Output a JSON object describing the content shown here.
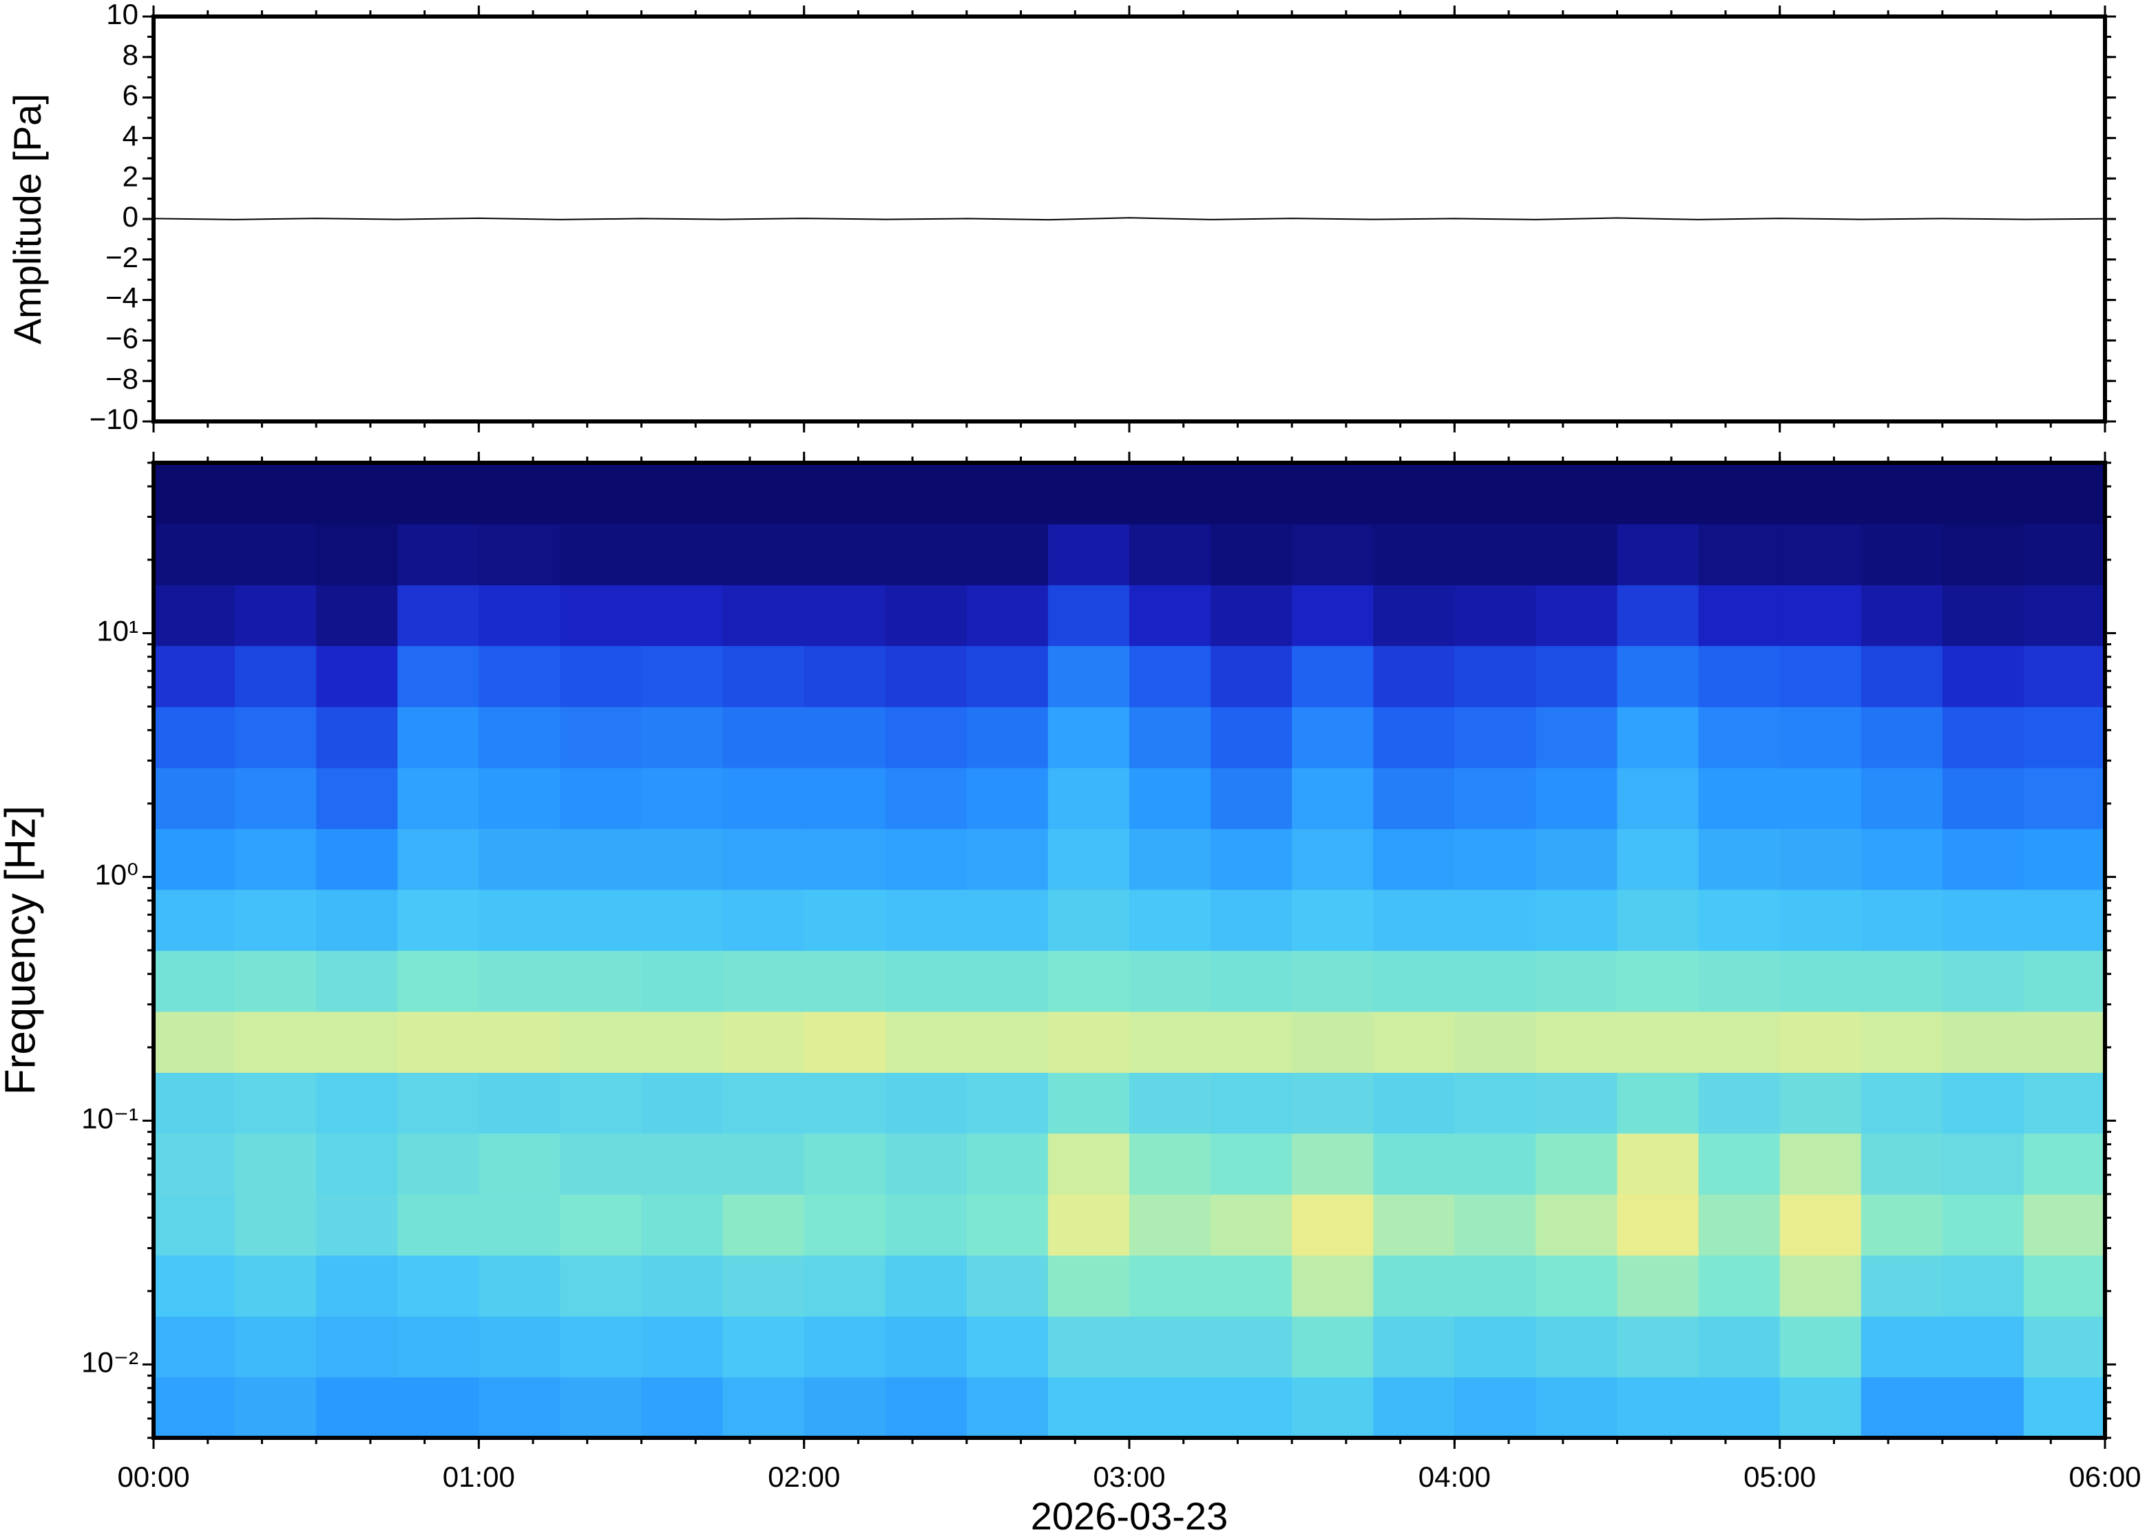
{
  "chart_data": [
    {
      "type": "line",
      "ylabel": "Amplitude [Pa]",
      "color": "#000000",
      "xlim": [
        0,
        360
      ],
      "ylim": [
        -10,
        10
      ],
      "yticks": [
        {
          "value": -10,
          "label": "−10"
        },
        {
          "value": -8,
          "label": "−8"
        },
        {
          "value": -6,
          "label": "−6"
        },
        {
          "value": -4,
          "label": "−4"
        },
        {
          "value": -2,
          "label": "−2"
        },
        0,
        2,
        4,
        6,
        8,
        10
      ],
      "x": [
        0,
        15,
        30,
        45,
        60,
        75,
        90,
        105,
        120,
        135,
        150,
        165,
        180,
        195,
        210,
        225,
        240,
        255,
        270,
        285,
        300,
        315,
        330,
        345,
        360
      ],
      "values": [
        0.02,
        -0.03,
        0.03,
        -0.02,
        0.04,
        -0.03,
        0.02,
        -0.02,
        0.03,
        -0.02,
        0.02,
        -0.04,
        0.06,
        -0.03,
        0.03,
        -0.02,
        0.02,
        -0.03,
        0.05,
        -0.03,
        0.03,
        -0.02,
        0.02,
        -0.02,
        0.01
      ]
    },
    {
      "type": "heatmap",
      "ylabel": "Frequency [Hz]",
      "xlabel": "2026-03-23",
      "log_y": true,
      "colormap": [
        "#0b0b6e",
        "#1a24c8",
        "#1e5cf0",
        "#2898ff",
        "#48c8f8",
        "#80e8d0",
        "#e8f090",
        "#ffd068",
        "#ff8a48"
      ],
      "xlim": [
        0,
        360
      ],
      "xticks": [
        {
          "value": 0,
          "label": "00:00"
        },
        {
          "value": 60,
          "label": "01:00"
        },
        {
          "value": 120,
          "label": "02:00"
        },
        {
          "value": 180,
          "label": "03:00"
        },
        {
          "value": 240,
          "label": "04:00"
        },
        {
          "value": 300,
          "label": "05:00"
        },
        {
          "value": 360,
          "label": "06:00"
        }
      ],
      "ylim": [
        0.005,
        50
      ],
      "yticks": [
        {
          "value": 0.01,
          "label": "10⁻²"
        },
        {
          "value": 0.1,
          "label": "10⁻¹"
        },
        {
          "value": 1,
          "label": "10⁰"
        },
        {
          "value": 10,
          "label": "10¹"
        }
      ],
      "x": [
        0,
        15,
        30,
        45,
        60,
        75,
        90,
        105,
        120,
        135,
        150,
        165,
        180,
        195,
        210,
        225,
        240,
        255,
        270,
        285,
        300,
        315,
        330,
        345,
        360
      ],
      "y": [
        0.005,
        0.0089,
        0.0158,
        0.0281,
        0.05,
        0.089,
        0.158,
        0.281,
        0.5,
        0.89,
        1.58,
        2.81,
        5,
        8.9,
        15.8,
        28.1,
        50
      ],
      "values": [
        [
          0.4,
          0.42,
          0.38,
          0.38,
          0.4,
          0.42,
          0.4,
          0.44,
          0.42,
          0.4,
          0.44,
          0.5,
          0.5,
          0.5,
          0.52,
          0.46,
          0.44,
          0.46,
          0.48,
          0.48,
          0.52,
          0.4,
          0.4,
          0.5
        ],
        [
          0.44,
          0.46,
          0.44,
          0.45,
          0.46,
          0.48,
          0.47,
          0.5,
          0.48,
          0.46,
          0.5,
          0.56,
          0.56,
          0.56,
          0.6,
          0.54,
          0.52,
          0.54,
          0.56,
          0.54,
          0.6,
          0.48,
          0.48,
          0.56
        ],
        [
          0.5,
          0.52,
          0.48,
          0.5,
          0.52,
          0.55,
          0.54,
          0.56,
          0.55,
          0.52,
          0.56,
          0.64,
          0.62,
          0.62,
          0.7,
          0.6,
          0.6,
          0.62,
          0.66,
          0.62,
          0.7,
          0.56,
          0.55,
          0.62
        ],
        [
          0.55,
          0.58,
          0.56,
          0.6,
          0.6,
          0.62,
          0.6,
          0.64,
          0.62,
          0.6,
          0.62,
          0.74,
          0.68,
          0.7,
          0.76,
          0.68,
          0.66,
          0.7,
          0.76,
          0.66,
          0.76,
          0.64,
          0.62,
          0.68
        ],
        [
          0.56,
          0.58,
          0.55,
          0.58,
          0.6,
          0.58,
          0.58,
          0.58,
          0.6,
          0.58,
          0.6,
          0.72,
          0.64,
          0.62,
          0.66,
          0.6,
          0.6,
          0.64,
          0.74,
          0.62,
          0.7,
          0.58,
          0.57,
          0.62
        ],
        [
          0.54,
          0.55,
          0.53,
          0.55,
          0.54,
          0.55,
          0.54,
          0.55,
          0.55,
          0.54,
          0.55,
          0.6,
          0.56,
          0.55,
          0.56,
          0.54,
          0.55,
          0.56,
          0.6,
          0.56,
          0.58,
          0.55,
          0.53,
          0.55
        ],
        [
          0.71,
          0.72,
          0.72,
          0.73,
          0.73,
          0.72,
          0.72,
          0.73,
          0.74,
          0.72,
          0.72,
          0.73,
          0.72,
          0.72,
          0.71,
          0.72,
          0.71,
          0.72,
          0.72,
          0.72,
          0.73,
          0.72,
          0.71,
          0.71
        ],
        [
          0.6,
          0.61,
          0.59,
          0.62,
          0.61,
          0.61,
          0.6,
          0.61,
          0.61,
          0.6,
          0.6,
          0.62,
          0.61,
          0.6,
          0.61,
          0.6,
          0.6,
          0.61,
          0.62,
          0.61,
          0.6,
          0.6,
          0.59,
          0.6
        ],
        [
          0.47,
          0.48,
          0.46,
          0.5,
          0.49,
          0.49,
          0.49,
          0.48,
          0.49,
          0.48,
          0.48,
          0.52,
          0.5,
          0.48,
          0.5,
          0.48,
          0.48,
          0.49,
          0.52,
          0.5,
          0.49,
          0.48,
          0.47,
          0.47
        ],
        [
          0.38,
          0.4,
          0.36,
          0.44,
          0.42,
          0.42,
          0.42,
          0.41,
          0.41,
          0.4,
          0.41,
          0.48,
          0.43,
          0.4,
          0.44,
          0.39,
          0.4,
          0.42,
          0.48,
          0.43,
          0.42,
          0.4,
          0.37,
          0.38
        ],
        [
          0.32,
          0.34,
          0.28,
          0.4,
          0.38,
          0.36,
          0.37,
          0.36,
          0.36,
          0.34,
          0.36,
          0.45,
          0.38,
          0.32,
          0.4,
          0.32,
          0.34,
          0.36,
          0.44,
          0.38,
          0.38,
          0.35,
          0.3,
          0.31
        ],
        [
          0.26,
          0.28,
          0.22,
          0.36,
          0.33,
          0.31,
          0.32,
          0.3,
          0.3,
          0.28,
          0.3,
          0.4,
          0.32,
          0.26,
          0.34,
          0.26,
          0.28,
          0.31,
          0.4,
          0.34,
          0.33,
          0.3,
          0.24,
          0.25
        ],
        [
          0.16,
          0.2,
          0.13,
          0.28,
          0.25,
          0.23,
          0.24,
          0.22,
          0.2,
          0.18,
          0.2,
          0.32,
          0.25,
          0.18,
          0.26,
          0.18,
          0.2,
          0.22,
          0.3,
          0.26,
          0.25,
          0.2,
          0.14,
          0.16
        ],
        [
          0.06,
          0.08,
          0.04,
          0.16,
          0.14,
          0.12,
          0.12,
          0.1,
          0.1,
          0.08,
          0.1,
          0.2,
          0.12,
          0.08,
          0.12,
          0.07,
          0.08,
          0.1,
          0.18,
          0.12,
          0.12,
          0.08,
          0.05,
          0.06
        ],
        [
          0.02,
          0.02,
          0.01,
          0.04,
          0.03,
          0.02,
          0.02,
          0.02,
          0.02,
          0.02,
          0.02,
          0.08,
          0.04,
          0.02,
          0.03,
          0.02,
          0.02,
          0.02,
          0.06,
          0.03,
          0.03,
          0.02,
          0.01,
          0.02
        ],
        [
          0,
          0,
          0,
          0,
          0,
          0,
          0,
          0,
          0,
          0,
          0,
          0,
          0,
          0,
          0,
          0,
          0,
          0,
          0,
          0,
          0,
          0,
          0,
          0
        ]
      ]
    }
  ]
}
